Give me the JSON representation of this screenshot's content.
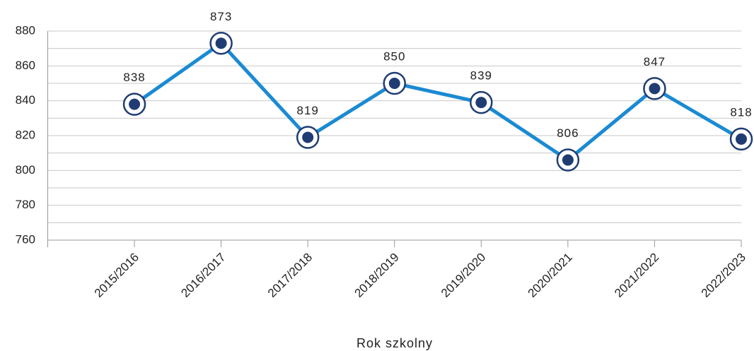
{
  "chart_data": {
    "type": "line",
    "x_label": "Rok szkolny",
    "categories": [
      "2015/2016",
      "2016/2017",
      "2017/2018",
      "2018/2019",
      "2019/2020",
      "2020/2021",
      "2021/2022",
      "2022/2023"
    ],
    "series": [
      {
        "color": "#1b8ad3",
        "marker_color": "#203d73",
        "values": [
          838,
          873,
          819,
          850,
          839,
          806,
          847,
          818
        ]
      }
    ],
    "ylim": [
      760,
      880
    ],
    "yticks": [
      760,
      780,
      800,
      820,
      840,
      860,
      880
    ],
    "minor_yticks": [
      770,
      790,
      810,
      830,
      850,
      870
    ],
    "grid": true
  }
}
